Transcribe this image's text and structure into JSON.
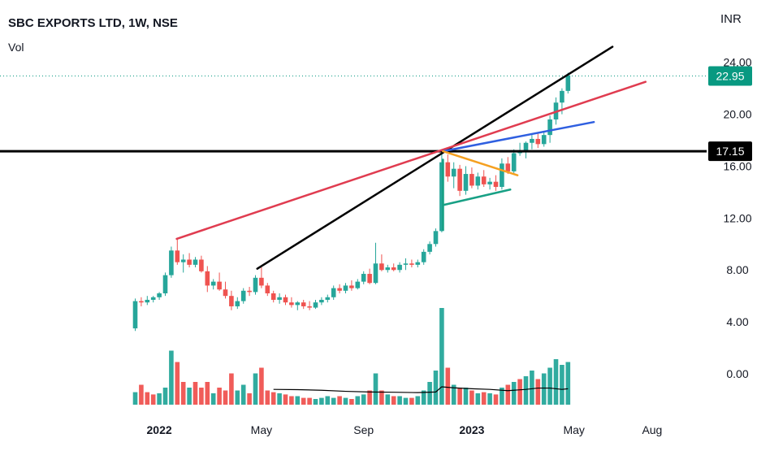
{
  "header": {
    "title": "SBC EXPORTS LTD, 1W, NSE",
    "indicator": "Vol",
    "currency": "INR"
  },
  "chart_data": {
    "type": "candlestick",
    "ylim": [
      -1.5,
      25.5
    ],
    "yticks": [
      "24.00",
      "20.00",
      "16.00",
      "12.00",
      "8.00",
      "4.00",
      "0.00"
    ],
    "ytick_values": [
      24,
      20,
      16,
      12,
      8,
      4,
      0
    ],
    "xticks": [
      {
        "label": "2022",
        "week": 4,
        "bold": true
      },
      {
        "label": "May",
        "week": 21,
        "bold": false
      },
      {
        "label": "Sep",
        "week": 38,
        "bold": false
      },
      {
        "label": "2023",
        "week": 56,
        "bold": true
      },
      {
        "label": "May",
        "week": 73,
        "bold": false
      },
      {
        "label": "Aug",
        "week": 86,
        "bold": false
      }
    ],
    "last_price": {
      "value": 22.95,
      "label": "22.95",
      "color": "#089981"
    },
    "level_line": {
      "value": 17.15,
      "label": "17.15",
      "color": "#000000"
    },
    "candles": [
      [
        0,
        3.5,
        5.8,
        3.3,
        5.6
      ],
      [
        1,
        5.6,
        5.9,
        5.2,
        5.5
      ],
      [
        2,
        5.5,
        6.0,
        5.3,
        5.7
      ],
      [
        3,
        5.7,
        6.0,
        5.5,
        5.9
      ],
      [
        4,
        5.9,
        6.3,
        5.7,
        6.2
      ],
      [
        5,
        6.2,
        7.8,
        6.0,
        7.6
      ],
      [
        6,
        7.6,
        9.8,
        7.4,
        9.5
      ],
      [
        7,
        9.5,
        10.4,
        8.4,
        8.6
      ],
      [
        8,
        8.6,
        9.2,
        7.8,
        8.8
      ],
      [
        9,
        8.8,
        9.3,
        8.2,
        8.4
      ],
      [
        10,
        8.4,
        9.0,
        8.2,
        8.8
      ],
      [
        11,
        8.8,
        9.1,
        7.8,
        7.9
      ],
      [
        12,
        7.9,
        8.3,
        6.3,
        6.8
      ],
      [
        13,
        6.8,
        7.3,
        6.5,
        7.1
      ],
      [
        14,
        7.1,
        7.8,
        6.4,
        6.5
      ],
      [
        15,
        6.5,
        7.1,
        5.8,
        6.0
      ],
      [
        16,
        6.0,
        6.4,
        4.9,
        5.2
      ],
      [
        17,
        5.2,
        5.9,
        5.0,
        5.6
      ],
      [
        18,
        5.6,
        6.6,
        5.4,
        6.4
      ],
      [
        19,
        6.4,
        6.7,
        6.0,
        6.3
      ],
      [
        20,
        6.3,
        7.6,
        6.1,
        7.4
      ],
      [
        21,
        7.4,
        8.2,
        6.6,
        6.8
      ],
      [
        22,
        6.8,
        7.0,
        6.0,
        6.2
      ],
      [
        23,
        6.2,
        6.4,
        5.5,
        5.7
      ],
      [
        24,
        5.7,
        6.2,
        5.4,
        5.9
      ],
      [
        25,
        5.9,
        6.1,
        5.3,
        5.5
      ],
      [
        26,
        5.5,
        5.9,
        5.1,
        5.3
      ],
      [
        27,
        5.3,
        5.6,
        4.9,
        5.5
      ],
      [
        28,
        5.5,
        5.7,
        5.0,
        5.2
      ],
      [
        29,
        5.2,
        5.6,
        4.9,
        5.1
      ],
      [
        30,
        5.1,
        5.7,
        5.0,
        5.5
      ],
      [
        31,
        5.5,
        5.9,
        5.3,
        5.7
      ],
      [
        32,
        5.7,
        6.1,
        5.5,
        5.9
      ],
      [
        33,
        5.9,
        6.8,
        5.7,
        6.6
      ],
      [
        34,
        6.6,
        6.9,
        6.2,
        6.4
      ],
      [
        35,
        6.4,
        7.0,
        6.2,
        6.8
      ],
      [
        36,
        6.8,
        7.2,
        6.4,
        6.6
      ],
      [
        37,
        6.6,
        7.3,
        6.5,
        7.1
      ],
      [
        38,
        7.1,
        7.9,
        6.9,
        7.7
      ],
      [
        39,
        7.7,
        8.1,
        6.9,
        7.0
      ],
      [
        40,
        7.0,
        10.1,
        6.9,
        8.5
      ],
      [
        41,
        8.5,
        9.2,
        7.9,
        8.0
      ],
      [
        42,
        8.0,
        8.4,
        7.8,
        8.2
      ],
      [
        43,
        8.2,
        8.5,
        7.9,
        8.0
      ],
      [
        44,
        8.0,
        8.6,
        7.8,
        8.4
      ],
      [
        45,
        8.4,
        8.9,
        8.0,
        8.5
      ],
      [
        46,
        8.5,
        8.8,
        8.2,
        8.4
      ],
      [
        47,
        8.4,
        8.8,
        8.2,
        8.6
      ],
      [
        48,
        8.6,
        9.6,
        8.4,
        9.4
      ],
      [
        49,
        9.4,
        10.2,
        9.2,
        10.0
      ],
      [
        50,
        10.0,
        11.2,
        9.8,
        11.0
      ],
      [
        51,
        11.0,
        17.2,
        10.9,
        16.3
      ],
      [
        52,
        16.3,
        16.9,
        14.8,
        15.2
      ],
      [
        53,
        15.2,
        16.3,
        14.3,
        15.8
      ],
      [
        54,
        15.8,
        16.1,
        13.7,
        14.1
      ],
      [
        55,
        14.1,
        16.0,
        13.8,
        15.4
      ],
      [
        56,
        15.4,
        15.9,
        14.3,
        14.5
      ],
      [
        57,
        14.5,
        15.5,
        14.2,
        15.2
      ],
      [
        58,
        15.2,
        15.7,
        14.4,
        14.6
      ],
      [
        59,
        14.6,
        15.1,
        14.2,
        14.8
      ],
      [
        60,
        14.8,
        15.3,
        14.1,
        14.4
      ],
      [
        61,
        14.4,
        16.6,
        14.2,
        16.2
      ],
      [
        62,
        16.2,
        16.7,
        15.4,
        15.6
      ],
      [
        63,
        15.6,
        17.3,
        15.4,
        17.0
      ],
      [
        64,
        17.0,
        17.8,
        16.8,
        17.1
      ],
      [
        65,
        17.1,
        17.9,
        16.6,
        17.8
      ],
      [
        66,
        17.8,
        18.4,
        17.3,
        18.1
      ],
      [
        67,
        18.1,
        18.5,
        17.4,
        17.7
      ],
      [
        68,
        17.7,
        18.6,
        17.5,
        18.4
      ],
      [
        69,
        18.4,
        19.9,
        17.8,
        19.6
      ],
      [
        70,
        19.6,
        21.3,
        19.2,
        20.9
      ],
      [
        71,
        20.9,
        22.0,
        20.0,
        21.8
      ],
      [
        72,
        21.8,
        23.2,
        21.6,
        23.0
      ]
    ],
    "volumes": [
      [
        0,
        0.22,
        "up"
      ],
      [
        1,
        0.35,
        "down"
      ],
      [
        2,
        0.22,
        "down"
      ],
      [
        3,
        0.18,
        "down"
      ],
      [
        4,
        0.2,
        "up"
      ],
      [
        5,
        0.3,
        "up"
      ],
      [
        6,
        0.95,
        "up"
      ],
      [
        7,
        0.75,
        "down"
      ],
      [
        8,
        0.4,
        "down"
      ],
      [
        9,
        0.3,
        "up"
      ],
      [
        10,
        0.4,
        "down"
      ],
      [
        11,
        0.3,
        "down"
      ],
      [
        12,
        0.4,
        "down"
      ],
      [
        13,
        0.2,
        "up"
      ],
      [
        14,
        0.3,
        "down"
      ],
      [
        15,
        0.25,
        "down"
      ],
      [
        16,
        0.55,
        "down"
      ],
      [
        17,
        0.25,
        "up"
      ],
      [
        18,
        0.35,
        "up"
      ],
      [
        19,
        0.2,
        "down"
      ],
      [
        20,
        0.55,
        "up"
      ],
      [
        21,
        0.65,
        "down"
      ],
      [
        22,
        0.25,
        "down"
      ],
      [
        23,
        0.22,
        "down"
      ],
      [
        24,
        0.2,
        "up"
      ],
      [
        25,
        0.18,
        "down"
      ],
      [
        26,
        0.15,
        "down"
      ],
      [
        27,
        0.15,
        "up"
      ],
      [
        28,
        0.12,
        "down"
      ],
      [
        29,
        0.12,
        "down"
      ],
      [
        30,
        0.1,
        "up"
      ],
      [
        31,
        0.12,
        "up"
      ],
      [
        32,
        0.15,
        "up"
      ],
      [
        33,
        0.12,
        "up"
      ],
      [
        34,
        0.15,
        "down"
      ],
      [
        35,
        0.12,
        "up"
      ],
      [
        36,
        0.1,
        "down"
      ],
      [
        37,
        0.15,
        "up"
      ],
      [
        38,
        0.18,
        "up"
      ],
      [
        39,
        0.25,
        "down"
      ],
      [
        40,
        0.55,
        "up"
      ],
      [
        41,
        0.25,
        "down"
      ],
      [
        42,
        0.18,
        "up"
      ],
      [
        43,
        0.15,
        "down"
      ],
      [
        44,
        0.15,
        "up"
      ],
      [
        45,
        0.12,
        "up"
      ],
      [
        46,
        0.12,
        "down"
      ],
      [
        47,
        0.15,
        "up"
      ],
      [
        48,
        0.25,
        "up"
      ],
      [
        49,
        0.4,
        "up"
      ],
      [
        50,
        0.6,
        "up"
      ],
      [
        51,
        1.7,
        "up"
      ],
      [
        52,
        0.65,
        "down"
      ],
      [
        53,
        0.35,
        "up"
      ],
      [
        54,
        0.3,
        "down"
      ],
      [
        55,
        0.3,
        "up"
      ],
      [
        56,
        0.25,
        "down"
      ],
      [
        57,
        0.2,
        "up"
      ],
      [
        58,
        0.22,
        "down"
      ],
      [
        59,
        0.2,
        "up"
      ],
      [
        60,
        0.18,
        "down"
      ],
      [
        61,
        0.3,
        "up"
      ],
      [
        62,
        0.35,
        "down"
      ],
      [
        63,
        0.4,
        "up"
      ],
      [
        64,
        0.45,
        "down"
      ],
      [
        65,
        0.5,
        "up"
      ],
      [
        66,
        0.6,
        "up"
      ],
      [
        67,
        0.45,
        "down"
      ],
      [
        68,
        0.55,
        "up"
      ],
      [
        69,
        0.65,
        "up"
      ],
      [
        70,
        0.8,
        "up"
      ],
      [
        71,
        0.7,
        "up"
      ],
      [
        72,
        0.75,
        "up"
      ]
    ],
    "volume_ma": [
      [
        23,
        -1.2
      ],
      [
        27,
        -1.22
      ],
      [
        31,
        -1.27
      ],
      [
        35,
        -1.35
      ],
      [
        39,
        -1.4
      ],
      [
        43,
        -1.42
      ],
      [
        47,
        -1.45
      ],
      [
        50,
        -1.4
      ],
      [
        51,
        -1.0
      ],
      [
        53,
        -1.08
      ],
      [
        56,
        -1.15
      ],
      [
        59,
        -1.2
      ],
      [
        62,
        -1.3
      ],
      [
        65,
        -1.2
      ],
      [
        67,
        -1.1
      ],
      [
        69,
        -1.1
      ],
      [
        71,
        -1.2
      ],
      [
        72,
        -1.15
      ]
    ],
    "trendlines": [
      {
        "name": "",
        "color": "#000000",
        "width": 2.5,
        "points": [
          [
            20.3,
            8.1
          ],
          [
            79.4,
            25.2
          ]
        ]
      },
      {
        "name": "",
        "color": "#e03c50",
        "width": 2.5,
        "points": [
          [
            6.9,
            10.4
          ],
          [
            84.9,
            22.5
          ]
        ]
      },
      {
        "name": "",
        "color": "#2f5fe0",
        "width": 2.5,
        "points": [
          [
            51.2,
            17.15
          ],
          [
            76.3,
            19.4
          ]
        ]
      },
      {
        "name": "",
        "color": "#f5a020",
        "width": 2.5,
        "points": [
          [
            51.2,
            17.15
          ],
          [
            63.6,
            15.3
          ]
        ]
      },
      {
        "name": "",
        "color": "#18a085",
        "width": 2.5,
        "points": [
          [
            51.2,
            13.0
          ],
          [
            62.4,
            14.2
          ]
        ]
      },
      {
        "name": "",
        "color": "#18a085",
        "width": 2.5,
        "points": [
          [
            51.2,
            11.1
          ],
          [
            51.2,
            16.5
          ]
        ]
      }
    ],
    "colors": {
      "up": "#26a69a",
      "down": "#ef5350",
      "up_vol": "#26a69a",
      "down_vol": "#ef5350"
    }
  }
}
